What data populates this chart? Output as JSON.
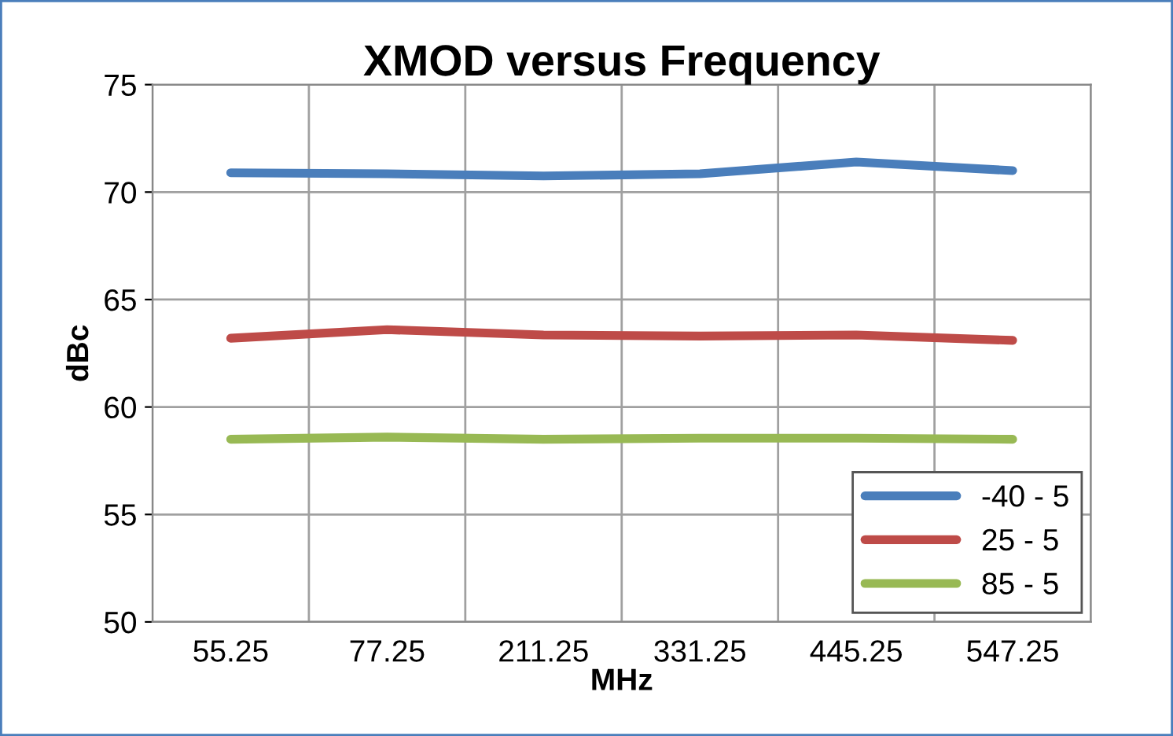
{
  "chart_data": {
    "type": "line",
    "title": "XMOD versus Frequency",
    "xlabel": "MHz",
    "ylabel": "dBc",
    "categories": [
      "55.25",
      "77.25",
      "211.25",
      "331.25",
      "445.25",
      "547.25"
    ],
    "series": [
      {
        "name": "-40 - 5",
        "color": "#4a7ebb",
        "values": [
          70.9,
          70.85,
          70.75,
          70.85,
          71.4,
          71.0
        ]
      },
      {
        "name": "25 - 5",
        "color": "#be4b48",
        "values": [
          63.2,
          63.6,
          63.35,
          63.3,
          63.35,
          63.1
        ]
      },
      {
        "name": "85 - 5",
        "color": "#98b954",
        "values": [
          58.5,
          58.6,
          58.5,
          58.55,
          58.55,
          58.5
        ]
      }
    ],
    "ylim": [
      50,
      75
    ],
    "yticks": [
      50,
      55,
      60,
      65,
      70,
      75
    ],
    "grid": true,
    "legend": "bottom right",
    "marker": "none",
    "line_style": "solid"
  }
}
